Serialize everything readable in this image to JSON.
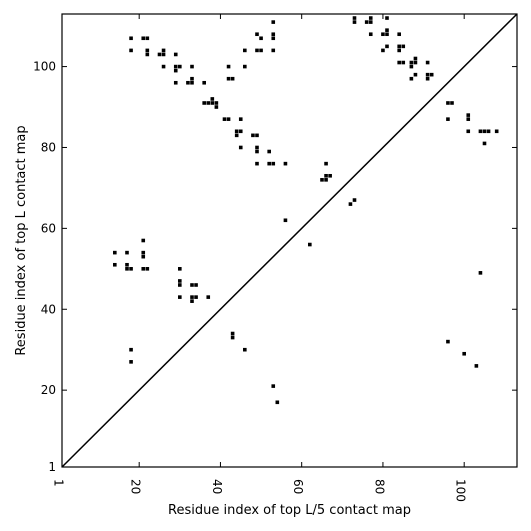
{
  "chart_data": {
    "type": "scatter",
    "xlabel": "Residue index of top L/5 contact map",
    "ylabel": "Residue index of top L contact map",
    "xlim": [
      1,
      113
    ],
    "ylim": [
      1,
      113
    ],
    "xticks": [
      1,
      20,
      40,
      60,
      80,
      100
    ],
    "yticks": [
      1,
      20,
      40,
      60,
      80,
      100
    ],
    "diagonal": true,
    "marker_color": "#000000",
    "points": [
      [
        18,
        107
      ],
      [
        21,
        107
      ],
      [
        22,
        107
      ],
      [
        18,
        104
      ],
      [
        22,
        104
      ],
      [
        22,
        103
      ],
      [
        25,
        103
      ],
      [
        26,
        104
      ],
      [
        26,
        103
      ],
      [
        29,
        103
      ],
      [
        26,
        100
      ],
      [
        29,
        100
      ],
      [
        30,
        100
      ],
      [
        29,
        99
      ],
      [
        33,
        100
      ],
      [
        29,
        96
      ],
      [
        32,
        96
      ],
      [
        33,
        96
      ],
      [
        33,
        97
      ],
      [
        36,
        96
      ],
      [
        36,
        91
      ],
      [
        37,
        91
      ],
      [
        38,
        91
      ],
      [
        38,
        92
      ],
      [
        39,
        91
      ],
      [
        39,
        90
      ],
      [
        41,
        87
      ],
      [
        42,
        87
      ],
      [
        42,
        100
      ],
      [
        42,
        97
      ],
      [
        43,
        97
      ],
      [
        45,
        87
      ],
      [
        44,
        84
      ],
      [
        45,
        84
      ],
      [
        44,
        83
      ],
      [
        48,
        83
      ],
      [
        49,
        83
      ],
      [
        45,
        80
      ],
      [
        49,
        80
      ],
      [
        49,
        79
      ],
      [
        52,
        79
      ],
      [
        49,
        76
      ],
      [
        52,
        76
      ],
      [
        53,
        76
      ],
      [
        56,
        76
      ],
      [
        46,
        100
      ],
      [
        46,
        104
      ],
      [
        49,
        104
      ],
      [
        50,
        104
      ],
      [
        49,
        108
      ],
      [
        50,
        107
      ],
      [
        53,
        107
      ],
      [
        53,
        108
      ],
      [
        53,
        104
      ],
      [
        53,
        111
      ],
      [
        73,
        112
      ],
      [
        73,
        111
      ],
      [
        76,
        111
      ],
      [
        77,
        111
      ],
      [
        77,
        112
      ],
      [
        77,
        108
      ],
      [
        80,
        108
      ],
      [
        81,
        108
      ],
      [
        81,
        109
      ],
      [
        81,
        112
      ],
      [
        80,
        104
      ],
      [
        81,
        105
      ],
      [
        84,
        104
      ],
      [
        84,
        105
      ],
      [
        85,
        105
      ],
      [
        84,
        108
      ],
      [
        84,
        101
      ],
      [
        85,
        101
      ],
      [
        87,
        101
      ],
      [
        87,
        100
      ],
      [
        88,
        101
      ],
      [
        88,
        102
      ],
      [
        87,
        97
      ],
      [
        88,
        98
      ],
      [
        91,
        97
      ],
      [
        91,
        98
      ],
      [
        92,
        98
      ],
      [
        91,
        101
      ],
      [
        96,
        91
      ],
      [
        97,
        91
      ],
      [
        96,
        87
      ],
      [
        101,
        87
      ],
      [
        101,
        88
      ],
      [
        101,
        84
      ],
      [
        104,
        84
      ],
      [
        105,
        84
      ],
      [
        106,
        84
      ],
      [
        108,
        84
      ],
      [
        105,
        81
      ],
      [
        66,
        76
      ],
      [
        65,
        72
      ],
      [
        66,
        72
      ],
      [
        66,
        73
      ],
      [
        67,
        73
      ],
      [
        72,
        66
      ],
      [
        73,
        67
      ],
      [
        62,
        56
      ],
      [
        56,
        62
      ],
      [
        14,
        54
      ],
      [
        17,
        54
      ],
      [
        14,
        51
      ],
      [
        17,
        51
      ],
      [
        17,
        50
      ],
      [
        18,
        50
      ],
      [
        21,
        57
      ],
      [
        21,
        54
      ],
      [
        21,
        53
      ],
      [
        21,
        50
      ],
      [
        22,
        50
      ],
      [
        30,
        50
      ],
      [
        30,
        47
      ],
      [
        30,
        46
      ],
      [
        33,
        46
      ],
      [
        34,
        46
      ],
      [
        30,
        43
      ],
      [
        33,
        43
      ],
      [
        34,
        43
      ],
      [
        37,
        43
      ],
      [
        33,
        42
      ],
      [
        43,
        34
      ],
      [
        43,
        33
      ],
      [
        46,
        30
      ],
      [
        53,
        21
      ],
      [
        54,
        17
      ],
      [
        18,
        30
      ],
      [
        18,
        27
      ],
      [
        96,
        32
      ],
      [
        100,
        29
      ],
      [
        103,
        26
      ],
      [
        104,
        49
      ]
    ]
  }
}
